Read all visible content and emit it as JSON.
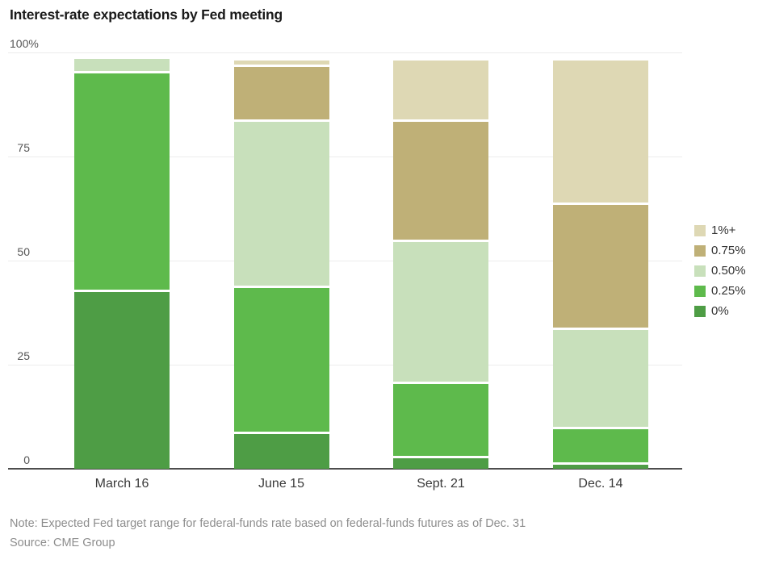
{
  "title": "Interest-rate expectations by Fed meeting",
  "note": "Note: Expected Fed target range for federal-funds rate based on federal-funds futures as of Dec. 31",
  "source": "Source: CME Group",
  "colors": {
    "rate_1_plus": "#ded8b4",
    "rate_075": "#bfb077",
    "rate_050": "#c8e0bb",
    "rate_025": "#5eba4c",
    "rate_0": "#4e9d45",
    "gridline": "#ececec",
    "axis_line": "#4d4d4d"
  },
  "chart_data": {
    "type": "bar",
    "stacked": true,
    "title": "Interest-rate expectations by Fed meeting",
    "categories": [
      "March 16",
      "June 15",
      "Sept. 21",
      "Dec. 14"
    ],
    "series": [
      {
        "name": "1%+",
        "color": "#ded8b4",
        "values": [
          0,
          1,
          14,
          34
        ]
      },
      {
        "name": "0.75%",
        "color": "#bfb077",
        "values": [
          0,
          13,
          29,
          30
        ]
      },
      {
        "name": "0.50%",
        "color": "#c8e0bb",
        "values": [
          3,
          40,
          34,
          24
        ]
      },
      {
        "name": "0.25%",
        "color": "#5eba4c",
        "values": [
          52.5,
          35,
          18,
          8.5
        ]
      },
      {
        "name": "0%",
        "color": "#4e9d45",
        "values": [
          43,
          9,
          3,
          1.5
        ]
      }
    ],
    "xlabel": "",
    "ylabel": "",
    "ylim": [
      0,
      100
    ],
    "yticks": [
      {
        "label": "100%",
        "value": 100
      },
      {
        "label": "75",
        "value": 75
      },
      {
        "label": "50",
        "value": 50
      },
      {
        "label": "25",
        "value": 25
      },
      {
        "label": "0",
        "value": 0
      }
    ],
    "grid": true,
    "legend_position": "right"
  }
}
